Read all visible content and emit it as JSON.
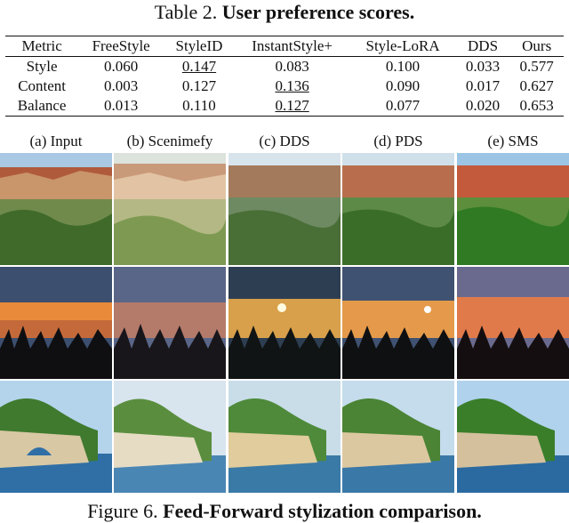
{
  "table": {
    "caption_label": "Table 2.",
    "caption_title": "User preference scores.",
    "headers": [
      "Metric",
      "FreeStyle",
      "StyleID",
      "InstantStyle+",
      "Style-LoRA",
      "DDS",
      "Ours"
    ],
    "rows": [
      {
        "metric": "Style",
        "values": [
          "0.060",
          "0.147",
          "0.083",
          "0.100",
          "0.033",
          "0.577"
        ]
      },
      {
        "metric": "Content",
        "values": [
          "0.003",
          "0.127",
          "0.136",
          "0.090",
          "0.017",
          "0.627"
        ]
      },
      {
        "metric": "Balance",
        "values": [
          "0.013",
          "0.110",
          "0.127",
          "0.077",
          "0.020",
          "0.653"
        ]
      }
    ]
  },
  "figure": {
    "columns": [
      "(a) Input",
      "(b) Scenimefy",
      "(c) DDS",
      "(d) PDS",
      "(e) SMS"
    ],
    "caption_label": "Figure 6.",
    "caption_title": "Feed-Forward stylization comparison."
  },
  "colors": {
    "canyon_sky": "#a8c8e4",
    "canyon_rock": "#b05a3c",
    "sunset_sky": "#3c4f6e",
    "sunset_glow": "#e88a3a",
    "lake_water": "#2f6fa6",
    "cliff_stone": "#d8c8a4",
    "foliage": "#3f7a2e"
  }
}
